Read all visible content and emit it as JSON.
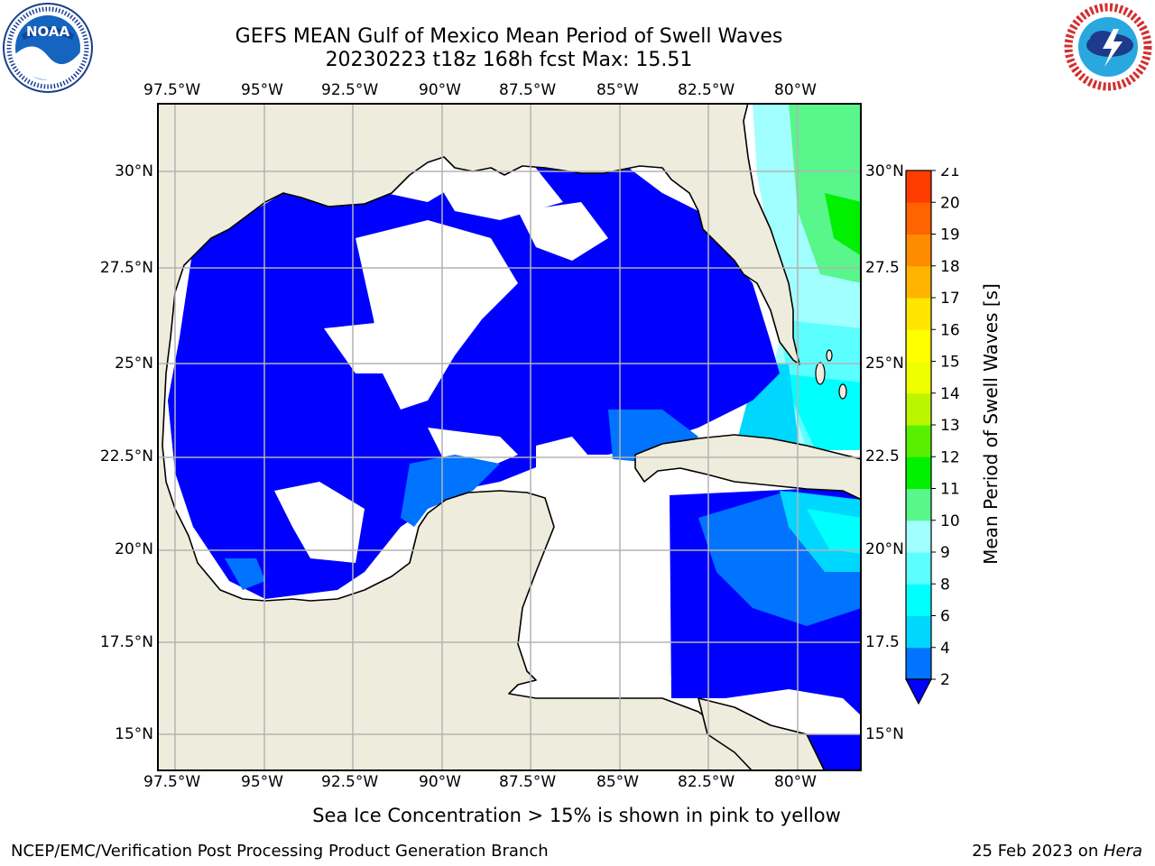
{
  "header": {
    "title_line1": "GEFS MEAN Gulf of Mexico Mean Period of Swell Waves",
    "title_line2": "20230223 t18z 168h fcst   Max: 15.51"
  },
  "logos": {
    "left": "NOAA",
    "left_ring": "NATIONAL OCEANIC AND ATMOSPHERIC ADMINISTRATION · U.S. DEPARTMENT OF COMMERCE",
    "right_ring": "NATIONAL WEATHER SERVICE"
  },
  "map": {
    "lon_labels": [
      "97.5°W",
      "95°W",
      "92.5°W",
      "90°W",
      "87.5°W",
      "85°W",
      "82.5°W",
      "80°W"
    ],
    "lat_labels_left": [
      "30°N",
      "27.5°N",
      "25°N",
      "22.5°N",
      "20°N",
      "17.5°N",
      "15°N"
    ],
    "lat_labels_right": [
      "30°N",
      "27.5",
      "25°N",
      "22.5",
      "20°N",
      "17.5",
      "15°N"
    ],
    "colors": {
      "land": "#eeecdc",
      "sea_low": "#0000ff",
      "grid": "#b3b3b3"
    }
  },
  "colorbar": {
    "label": "Mean Period of Swell Waves [s]",
    "ticks": [
      "2",
      "4",
      "6",
      "8",
      "9",
      "10",
      "11",
      "12",
      "13",
      "14",
      "15",
      "16",
      "17",
      "18",
      "19",
      "20",
      "21"
    ],
    "colors": [
      "#0073ff",
      "#00d7ff",
      "#00ffff",
      "#5cffff",
      "#a2ffff",
      "#58f68b",
      "#00f000",
      "#59ef00",
      "#bcf500",
      "#f0ff00",
      "#ffff00",
      "#ffe500",
      "#ffb400",
      "#ff8c00",
      "#ff6400",
      "#ff3c00",
      "#ff0000"
    ],
    "under_color": "#0000ff"
  },
  "note": "Sea Ice Concentration > 15% is shown in pink to yellow",
  "footer": {
    "left": "NCEP/EMC/Verification Post Processing Product Generation Branch",
    "right_date": "25 Feb 2023 on ",
    "right_host": "Hera"
  }
}
